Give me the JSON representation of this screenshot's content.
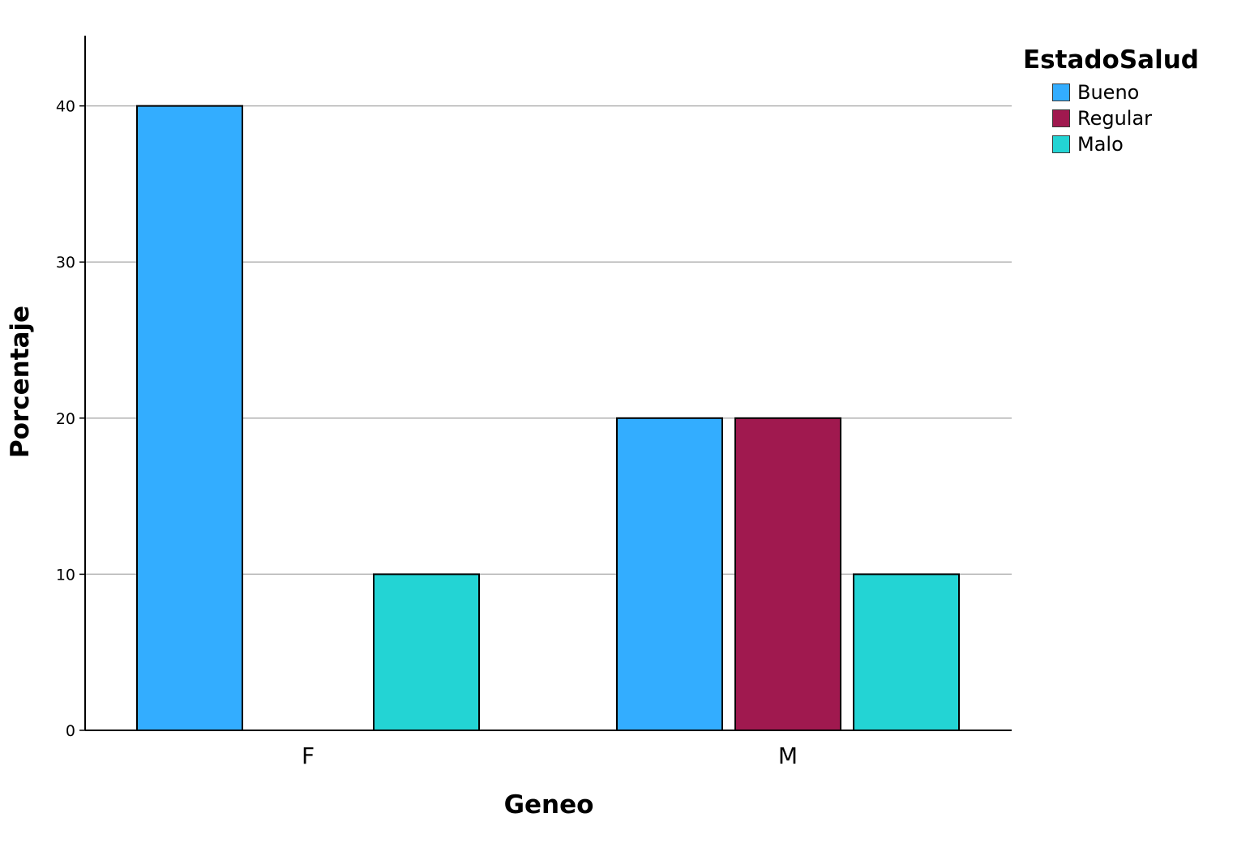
{
  "chart_data": {
    "type": "bar",
    "categories": [
      "F",
      "M"
    ],
    "series": [
      {
        "name": "Bueno",
        "color": "#33adff",
        "values": [
          40,
          20
        ]
      },
      {
        "name": "Regular",
        "color": "#a0194f",
        "values": [
          0,
          20
        ]
      },
      {
        "name": "Malo",
        "color": "#23d4d4",
        "values": [
          10,
          10
        ]
      }
    ],
    "xlabel": "Geneo",
    "ylabel": "Porcentaje",
    "ylim": [
      0,
      44.5
    ],
    "yticks": [
      0,
      10,
      20,
      30,
      40
    ],
    "grid": true,
    "legend": {
      "title": "EstadoSalud",
      "position": "top-right"
    }
  }
}
